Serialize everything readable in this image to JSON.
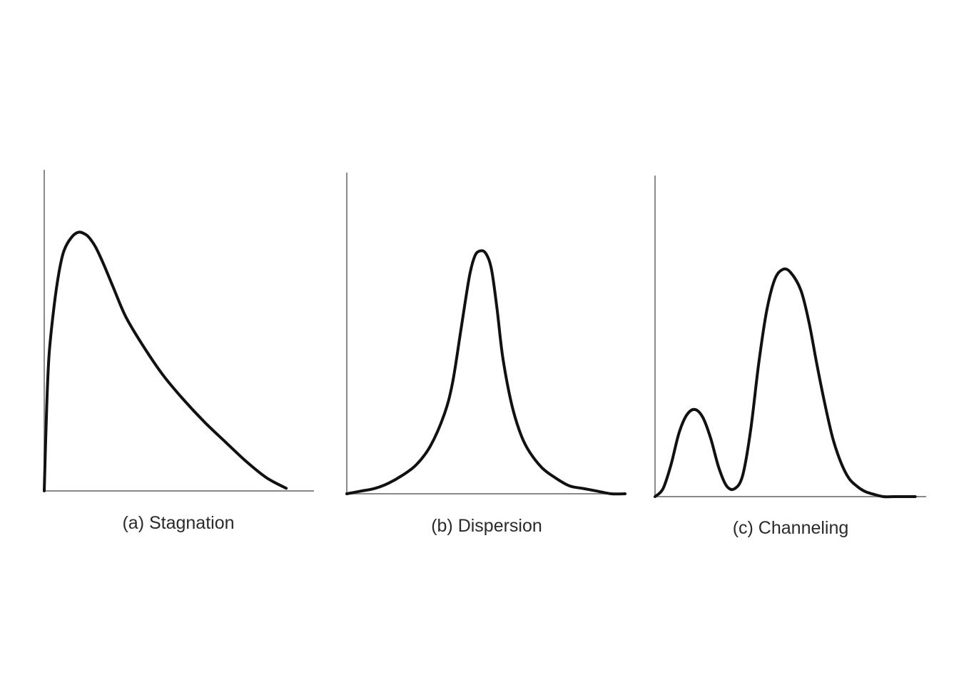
{
  "chart_data": [
    {
      "type": "line",
      "caption": "(a) Stagnation",
      "xlim": [
        0,
        1
      ],
      "ylim": [
        0,
        1
      ],
      "grid": false,
      "series": [
        {
          "x": [
            0.0,
            0.01,
            0.02,
            0.04,
            0.06,
            0.08,
            0.11,
            0.14,
            0.17,
            0.19,
            0.21,
            0.24,
            0.28,
            0.33,
            0.4,
            0.48,
            0.56,
            0.65,
            0.74,
            0.82,
            0.9,
            0.98
          ],
          "values": [
            0.0,
            0.32,
            0.52,
            0.7,
            0.83,
            0.91,
            0.96,
            0.98,
            0.97,
            0.95,
            0.92,
            0.86,
            0.77,
            0.66,
            0.55,
            0.44,
            0.35,
            0.26,
            0.18,
            0.11,
            0.05,
            0.01
          ]
        }
      ]
    },
    {
      "type": "line",
      "caption": "(b) Dispersion",
      "xlim": [
        0,
        1
      ],
      "ylim": [
        0,
        1
      ],
      "grid": false,
      "series": [
        {
          "x": [
            0.0,
            0.05,
            0.1,
            0.15,
            0.2,
            0.25,
            0.3,
            0.35,
            0.38,
            0.41,
            0.44,
            0.46,
            0.48,
            0.5,
            0.52,
            0.54,
            0.56,
            0.59,
            0.62,
            0.65,
            0.7,
            0.75,
            0.8,
            0.85,
            0.9,
            0.95,
            1.0
          ],
          "values": [
            0.0,
            0.01,
            0.02,
            0.04,
            0.07,
            0.11,
            0.18,
            0.3,
            0.42,
            0.62,
            0.82,
            0.9,
            0.92,
            0.91,
            0.85,
            0.7,
            0.52,
            0.35,
            0.24,
            0.17,
            0.1,
            0.06,
            0.03,
            0.02,
            0.01,
            0.0,
            0.0
          ]
        }
      ]
    },
    {
      "type": "line",
      "caption": "(c) Channeling",
      "xlim": [
        0,
        1
      ],
      "ylim": [
        0,
        1
      ],
      "grid": false,
      "series": [
        {
          "x": [
            0.0,
            0.03,
            0.06,
            0.09,
            0.12,
            0.15,
            0.18,
            0.21,
            0.24,
            0.27,
            0.3,
            0.33,
            0.36,
            0.39,
            0.42,
            0.45,
            0.48,
            0.51,
            0.55,
            0.58,
            0.61,
            0.64,
            0.67,
            0.7,
            0.73,
            0.76,
            0.79,
            0.82,
            0.86,
            0.9,
            0.94,
            0.98
          ],
          "values": [
            0.0,
            0.03,
            0.12,
            0.24,
            0.31,
            0.33,
            0.3,
            0.22,
            0.11,
            0.04,
            0.03,
            0.08,
            0.25,
            0.5,
            0.7,
            0.82,
            0.86,
            0.85,
            0.78,
            0.66,
            0.5,
            0.35,
            0.22,
            0.13,
            0.07,
            0.04,
            0.02,
            0.01,
            0.0,
            0.0,
            0.0,
            0.0
          ]
        }
      ]
    }
  ]
}
